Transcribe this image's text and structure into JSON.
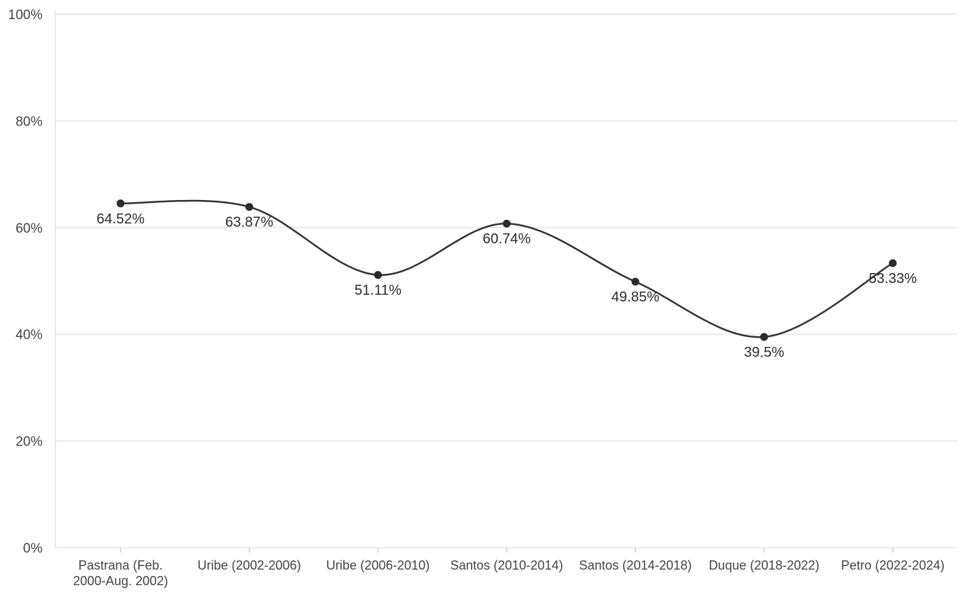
{
  "chart_data": {
    "type": "line",
    "categories": [
      [
        "Pastrana (Feb.",
        "2000-Aug. 2002)"
      ],
      [
        "Uribe (2002-2006)"
      ],
      [
        "Uribe (2006-2010)"
      ],
      [
        "Santos (2010-2014)"
      ],
      [
        "Santos (2014-2018)"
      ],
      [
        "Duque (2018-2022)"
      ],
      [
        "Petro (2022-2024)"
      ]
    ],
    "values": [
      64.52,
      63.87,
      51.11,
      60.74,
      49.85,
      39.5,
      53.33
    ],
    "data_labels": [
      "64.52%",
      "63.87%",
      "51.11%",
      "60.74%",
      "49.85%",
      "39.5%",
      "53.33%"
    ],
    "y_ticks": [
      {
        "value": 0,
        "label": "0%"
      },
      {
        "value": 20,
        "label": "20%"
      },
      {
        "value": 40,
        "label": "40%"
      },
      {
        "value": 60,
        "label": "60%"
      },
      {
        "value": 80,
        "label": "80%"
      },
      {
        "value": 100,
        "label": "100%"
      }
    ],
    "ylim": [
      0,
      100
    ],
    "title": "",
    "xlabel": "",
    "ylabel": "",
    "grid": true,
    "smooth": true,
    "colors": {
      "line": "#333333",
      "point": "#2b2b2b",
      "grid": "#ebebeb"
    }
  }
}
